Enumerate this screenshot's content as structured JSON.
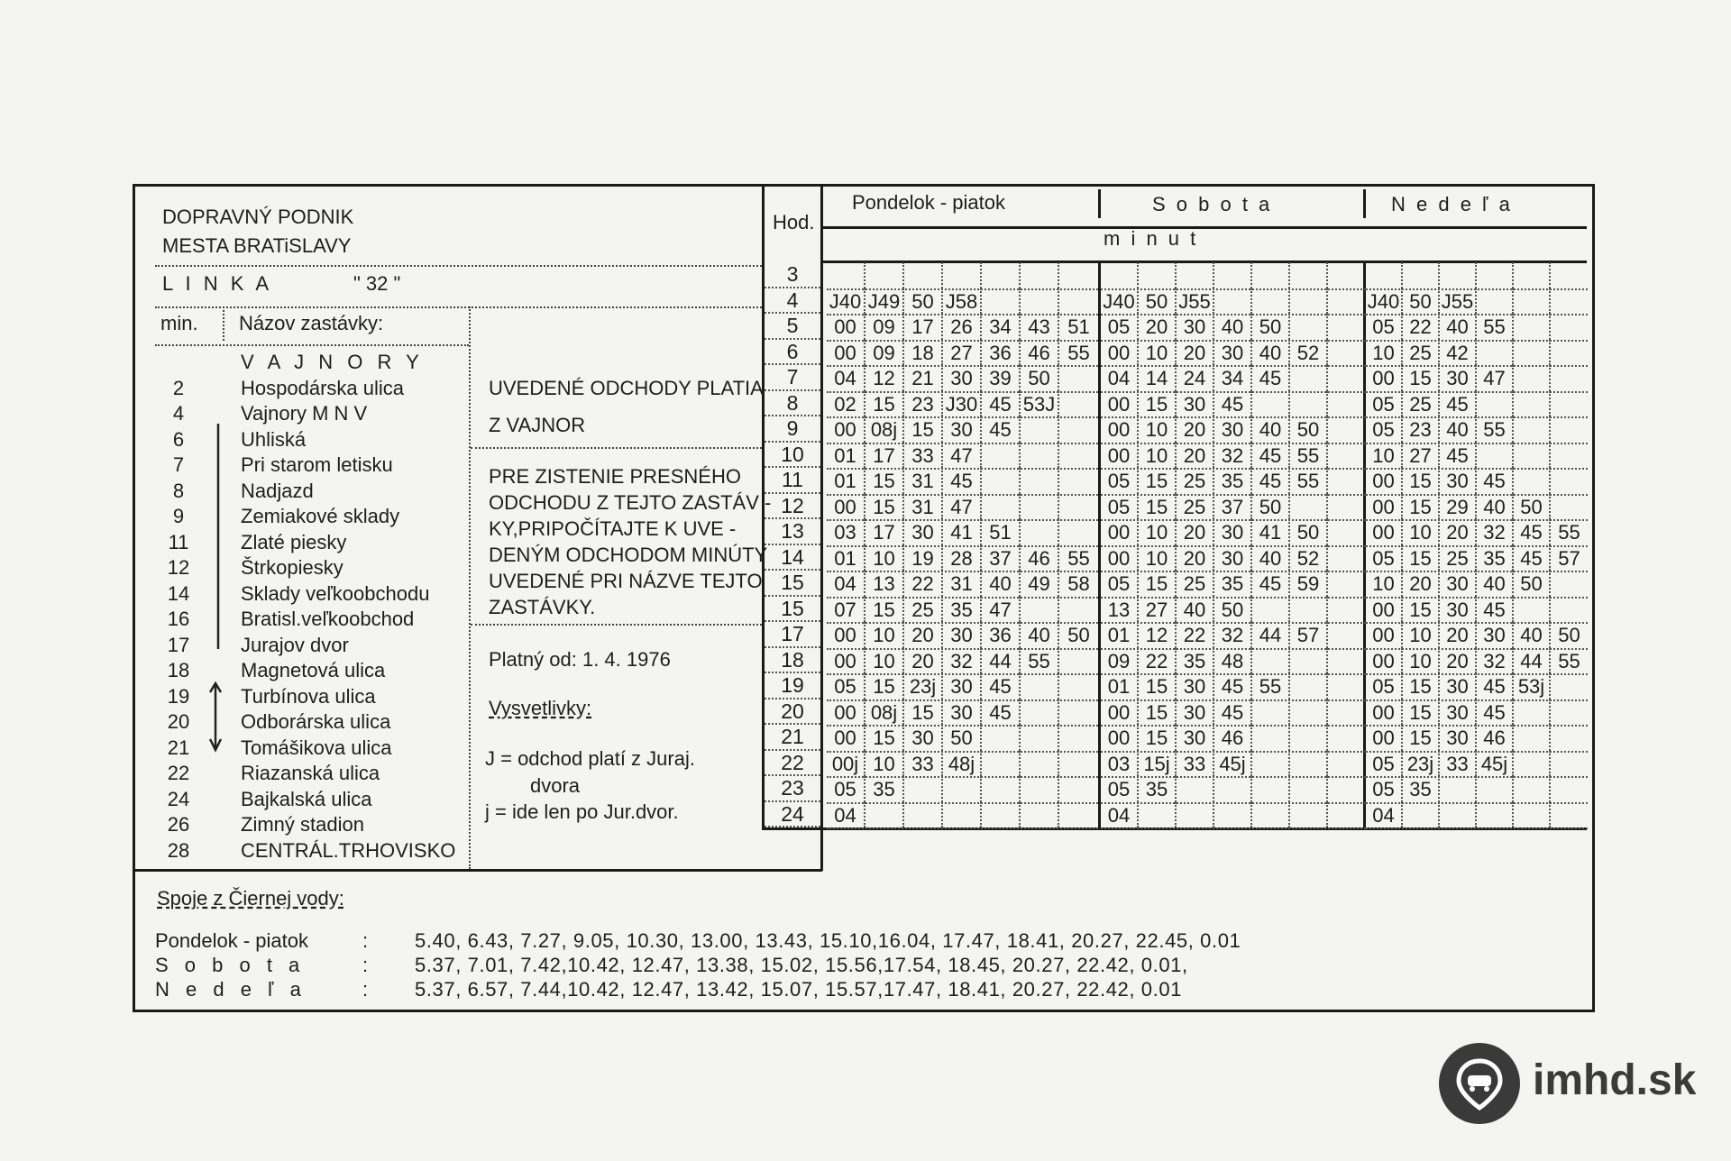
{
  "header": {
    "company_line1": "DOPRAVNÝ PODNIK",
    "company_line2": "MESTA BRATiSLAVY",
    "line_label": "L I N K A",
    "line_number": "\" 32 \"",
    "col_min": "min.",
    "col_stop": "Názov zastávky:"
  },
  "stops": [
    {
      "min": "",
      "name": "V A J N O R Y"
    },
    {
      "min": "2",
      "name": "Hospodárska ulica"
    },
    {
      "min": "4",
      "name": "Vajnory  M N V"
    },
    {
      "min": "6",
      "name": "Uhliská"
    },
    {
      "min": "7",
      "name": "Pri starom letisku"
    },
    {
      "min": "8",
      "name": "Nadjazd"
    },
    {
      "min": "9",
      "name": "Zemiakové sklady"
    },
    {
      "min": "11",
      "name": "Zlaté piesky"
    },
    {
      "min": "12",
      "name": "Štrkopiesky"
    },
    {
      "min": "14",
      "name": "Sklady veľkoobchodu"
    },
    {
      "min": "16",
      "name": "Bratisl.veľkoobchod"
    },
    {
      "min": "17",
      "name": "Jurajov dvor"
    },
    {
      "min": "18",
      "name": "Magnetová ulica"
    },
    {
      "min": "19",
      "name": "Turbínova ulica"
    },
    {
      "min": "20",
      "name": "Odborárska ulica"
    },
    {
      "min": "21",
      "name": "Tomášikova ulica"
    },
    {
      "min": "22",
      "name": "Riazanská ulica"
    },
    {
      "min": "24",
      "name": "Bajkalská ulica"
    },
    {
      "min": "26",
      "name": "Zimný stadion"
    },
    {
      "min": "28",
      "name": "CENTRÁL.TRHOVISKO"
    }
  ],
  "notes": {
    "valid_from_line1": "UVEDENÉ ODCHODY PLATIA",
    "valid_from_line2": "Z  VAJNOR",
    "instruction_lines": [
      "PRE ZISTENIE PRESNÉHO",
      "ODCHODU Z TEJTO ZASTÁV -",
      "KY,PRIPOČÍTAJTE K UVE -",
      "DENÝM ODCHODOM MINÚTY",
      "UVEDENÉ PRI NÁZVE TEJTO",
      "ZASTÁVKY."
    ],
    "valid_label": "Platný od:  1. 4. 1976",
    "legend_title": "Vysvetlivky:",
    "legend_J": "J = odchod platí z Juraj.",
    "legend_J2": "dvora",
    "legend_j": "j = ide len po Jur.dvor."
  },
  "timetable": {
    "hour_label": "Hod.",
    "minutes_label": "m i n u t",
    "columns": [
      "Pondelok - piatok",
      "S o b o t a",
      "N e d e ľ a"
    ],
    "rows": [
      {
        "hour": "3",
        "pp": [],
        "so": [],
        "ne": []
      },
      {
        "hour": "4",
        "pp": [
          "J40",
          "J49",
          "50",
          "J58"
        ],
        "so": [
          "J40",
          "50",
          "J55"
        ],
        "ne": [
          "J40",
          "50",
          "J55"
        ]
      },
      {
        "hour": "5",
        "pp": [
          "00",
          "09",
          "17",
          "26",
          "34",
          "43",
          "51"
        ],
        "so": [
          "05",
          "20",
          "30",
          "40",
          "50"
        ],
        "ne": [
          "05",
          "22",
          "40",
          "55"
        ]
      },
      {
        "hour": "6",
        "pp": [
          "00",
          "09",
          "18",
          "27",
          "36",
          "46",
          "55"
        ],
        "so": [
          "00",
          "10",
          "20",
          "30",
          "40",
          "52"
        ],
        "ne": [
          "10",
          "25",
          "42"
        ]
      },
      {
        "hour": "7",
        "pp": [
          "04",
          "12",
          "21",
          "30",
          "39",
          "50"
        ],
        "so": [
          "04",
          "14",
          "24",
          "34",
          "45"
        ],
        "ne": [
          "00",
          "15",
          "30",
          "47"
        ]
      },
      {
        "hour": "8",
        "pp": [
          "02",
          "15",
          "23",
          "J30",
          "45",
          "53J"
        ],
        "so": [
          "00",
          "15",
          "30",
          "45"
        ],
        "ne": [
          "05",
          "25",
          "45"
        ]
      },
      {
        "hour": "9",
        "pp": [
          "00",
          "08j",
          "15",
          "30",
          "45"
        ],
        "so": [
          "00",
          "10",
          "20",
          "30",
          "40",
          "50"
        ],
        "ne": [
          "05",
          "23",
          "40",
          "55"
        ]
      },
      {
        "hour": "10",
        "pp": [
          "01",
          "17",
          "33",
          "47"
        ],
        "so": [
          "00",
          "10",
          "20",
          "32",
          "45",
          "55"
        ],
        "ne": [
          "10",
          "27",
          "45"
        ]
      },
      {
        "hour": "11",
        "pp": [
          "01",
          "15",
          "31",
          "45"
        ],
        "so": [
          "05",
          "15",
          "25",
          "35",
          "45",
          "55"
        ],
        "ne": [
          "00",
          "15",
          "30",
          "45"
        ]
      },
      {
        "hour": "12",
        "pp": [
          "00",
          "15",
          "31",
          "47"
        ],
        "so": [
          "05",
          "15",
          "25",
          "37",
          "50"
        ],
        "ne": [
          "00",
          "15",
          "29",
          "40",
          "50"
        ]
      },
      {
        "hour": "13",
        "pp": [
          "03",
          "17",
          "30",
          "41",
          "51"
        ],
        "so": [
          "00",
          "10",
          "20",
          "30",
          "41",
          "50"
        ],
        "ne": [
          "00",
          "10",
          "20",
          "32",
          "45",
          "55"
        ]
      },
      {
        "hour": "14",
        "pp": [
          "01",
          "10",
          "19",
          "28",
          "37",
          "46",
          "55"
        ],
        "so": [
          "00",
          "10",
          "20",
          "30",
          "40",
          "52"
        ],
        "ne": [
          "05",
          "15",
          "25",
          "35",
          "45",
          "57"
        ]
      },
      {
        "hour": "15",
        "pp": [
          "04",
          "13",
          "22",
          "31",
          "40",
          "49",
          "58"
        ],
        "so": [
          "05",
          "15",
          "25",
          "35",
          "45",
          "59"
        ],
        "ne": [
          "10",
          "20",
          "30",
          "40",
          "50"
        ]
      },
      {
        "hour": "15",
        "pp": [
          "07",
          "15",
          "25",
          "35",
          "47"
        ],
        "so": [
          "13",
          "27",
          "40",
          "50"
        ],
        "ne": [
          "00",
          "15",
          "30",
          "45"
        ]
      },
      {
        "hour": "17",
        "pp": [
          "00",
          "10",
          "20",
          "30",
          "36",
          "40",
          "50"
        ],
        "so": [
          "01",
          "12",
          "22",
          "32",
          "44",
          "57"
        ],
        "ne": [
          "00",
          "10",
          "20",
          "30",
          "40",
          "50"
        ]
      },
      {
        "hour": "18",
        "pp": [
          "00",
          "10",
          "20",
          "32",
          "44",
          "55"
        ],
        "so": [
          "09",
          "22",
          "35",
          "48"
        ],
        "ne": [
          "00",
          "10",
          "20",
          "32",
          "44",
          "55"
        ]
      },
      {
        "hour": "19",
        "pp": [
          "05",
          "15",
          "23j",
          "30",
          "45"
        ],
        "so": [
          "01",
          "15",
          "30",
          "45",
          "55"
        ],
        "ne": [
          "05",
          "15",
          "30",
          "45",
          "53j"
        ]
      },
      {
        "hour": "20",
        "pp": [
          "00",
          "08j",
          "15",
          "30",
          "45"
        ],
        "so": [
          "00",
          "15",
          "30",
          "45"
        ],
        "ne": [
          "00",
          "15",
          "30",
          "45"
        ]
      },
      {
        "hour": "21",
        "pp": [
          "00",
          "15",
          "30",
          "50"
        ],
        "so": [
          "00",
          "15",
          "30",
          "46"
        ],
        "ne": [
          "00",
          "15",
          "30",
          "46"
        ]
      },
      {
        "hour": "22",
        "pp": [
          "00j",
          "10",
          "33",
          "48j"
        ],
        "so": [
          "03",
          "15j",
          "33",
          "45j"
        ],
        "ne": [
          "05",
          "23j",
          "33",
          "45j"
        ]
      },
      {
        "hour": "23",
        "pp": [
          "05",
          "35"
        ],
        "so": [
          "05",
          "35"
        ],
        "ne": [
          "05",
          "35"
        ]
      },
      {
        "hour": "24",
        "pp": [
          "04"
        ],
        "so": [
          "04"
        ],
        "ne": [
          "04"
        ]
      }
    ]
  },
  "cierna_voda": {
    "title": "Spoje z Čiernej vody:",
    "lines": [
      {
        "label": "Pondelok - piatok",
        "times": "5.40, 6.43, 7.27, 9.05, 10.30, 13.00, 13.43, 15.10,16.04, 17.47, 18.41, 20.27, 22.45, 0.01"
      },
      {
        "label": "S o b o t a",
        "times": "5.37, 7.01, 7.42,10.42, 12.47, 13.38, 15.02, 15.56,17.54, 18.45, 20.27, 22.42,  0.01,"
      },
      {
        "label": "N e d e ľ a",
        "times": "5.37, 6.57, 7.44,10.42, 12.47, 13.42, 15.07, 15.57,17.47, 18.41, 20.27, 22.42,  0.01"
      }
    ]
  },
  "watermark_logo": {
    "text": "imhd.sk",
    "color": "#3a3a3a"
  }
}
